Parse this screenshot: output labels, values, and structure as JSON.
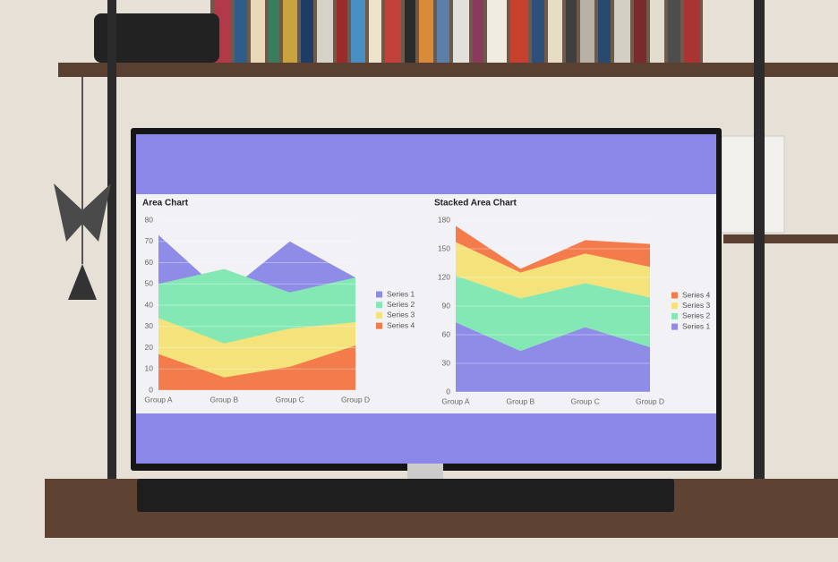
{
  "chart_data": [
    {
      "type": "area",
      "title": "Area Chart",
      "categories": [
        "Group A",
        "Group B",
        "Group C",
        "Group D"
      ],
      "series": [
        {
          "name": "Series 1",
          "color": "#8f8ce8",
          "values": [
            73,
            45,
            70,
            53
          ]
        },
        {
          "name": "Series 2",
          "color": "#84e8b4",
          "values": [
            50,
            57,
            46,
            53
          ]
        },
        {
          "name": "Series 3",
          "color": "#f4e27a",
          "values": [
            34,
            22,
            29,
            32
          ]
        },
        {
          "name": "Series 4",
          "color": "#f47c4c",
          "values": [
            17,
            6,
            11,
            21
          ]
        }
      ],
      "ylim": [
        0,
        80
      ],
      "yticks": [
        0,
        10,
        20,
        30,
        40,
        50,
        60,
        70,
        80
      ],
      "grid": true,
      "legend": "right"
    },
    {
      "type": "stacked_area",
      "title": "Stacked Area Chart",
      "categories": [
        "Group A",
        "Group B",
        "Group C",
        "Group D"
      ],
      "series": [
        {
          "name": "Series 1",
          "color": "#8f8ce8",
          "values": [
            73,
            43,
            68,
            47
          ]
        },
        {
          "name": "Series 2",
          "color": "#84e8b4",
          "values": [
            49,
            55,
            46,
            52
          ]
        },
        {
          "name": "Series 3",
          "color": "#f4e27a",
          "values": [
            35,
            27,
            31,
            32
          ]
        },
        {
          "name": "Series 4",
          "color": "#f47c4c",
          "values": [
            17,
            4,
            14,
            24
          ]
        }
      ],
      "ylim": [
        0,
        180
      ],
      "yticks": [
        0,
        30,
        60,
        90,
        120,
        150,
        180
      ],
      "grid": true,
      "legend": "right"
    }
  ]
}
